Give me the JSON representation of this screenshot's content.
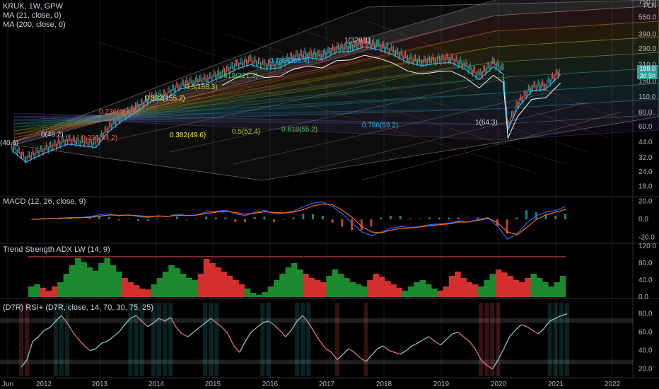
{
  "header": {
    "symbol_line": "KRUK, 1W, GPW",
    "ma1": "MA (21, close, 0)",
    "ma2": "MA (200, close, 0)",
    "currency": "PLN"
  },
  "price_tag": {
    "value": "188.0",
    "countdown": "3d 5h"
  },
  "panes": {
    "macd_title": "MACD (12, 26, close, 9)",
    "adx_title": "Trend Strength ADX LW (14, 9)",
    "rsi_title": "(D7R) RSI+ (D7R, close, 14, 70, 30, 75, 25)"
  },
  "colors": {
    "up": "#26a69a",
    "down": "#ef5350",
    "macd": "#2962ff",
    "signal": "#ff6d00",
    "adx_up": "#1b8a2f",
    "adx_down": "#d32f2f",
    "rsi_up": "#80cbc4",
    "rsi_down": "#e57373"
  },
  "chart_data": [
    {
      "type": "line",
      "title": "KRUK, 1W, GPW",
      "yscale": "log",
      "ylim": [
        15,
        780
      ],
      "x_ticks": [
        "Jun",
        "2012",
        "2013",
        "2014",
        "2015",
        "2016",
        "2017",
        "2018",
        "2019",
        "2020",
        "2021",
        "2022"
      ],
      "y_ticks": [
        18.0,
        24.0,
        32.0,
        44.0,
        60.0,
        80.0,
        110.0,
        150.0,
        210.0,
        290.0,
        390.0,
        550.0,
        750.0
      ],
      "series": [
        {
          "x": [
            "2011-06",
            "2011-09",
            "2012-01",
            "2012-06",
            "2012-12",
            "2013-03",
            "2013-06",
            "2013-09",
            "2013-12",
            "2014-03",
            "2014-06",
            "2014-09",
            "2014-12",
            "2015-03",
            "2015-06",
            "2015-09",
            "2015-12",
            "2016-03",
            "2016-06",
            "2016-09",
            "2016-12",
            "2017-03",
            "2017-06",
            "2017-09",
            "2017-12",
            "2018-03",
            "2018-06",
            "2018-09",
            "2018-12",
            "2019-03",
            "2019-06",
            "2019-09",
            "2019-12",
            "2020-02",
            "2020-03",
            "2020-05",
            "2020-08",
            "2020-11",
            "2021-02"
          ],
          "values": [
            40.6,
            32,
            38,
            46,
            43,
            60,
            75,
            90,
            110,
            115,
            140,
            150,
            160,
            180,
            210,
            230,
            210,
            215,
            250,
            265,
            255,
            295,
            300,
            330,
            310,
            280,
            240,
            225,
            235,
            240,
            210,
            170,
            220,
            190,
            62,
            95,
            135,
            140,
            188
          ]
        }
      ],
      "annotations": [
        "(40.6)",
        "0(48.2)",
        "0.236(114.3)",
        "0.382(155.2)",
        "0.5(188.3)",
        "0.618(221.3)",
        "0.786(268.4)",
        "1(328.1)",
        "1(64.3)",
        "0.236(44.2)",
        "0.382(49.6)",
        "0.5(52.4)",
        "0.618(55.2)",
        "0.786(59.2)"
      ]
    },
    {
      "type": "line",
      "title": "MACD (12, 26, close, 9)",
      "ylim": [
        -25,
        22
      ],
      "y_ticks": [
        20.0,
        0.0,
        -20.0
      ],
      "series": [
        {
          "name": "MACD",
          "values": [
            0,
            0.5,
            1,
            1.5,
            2,
            2,
            3,
            5,
            6,
            4,
            5,
            3,
            2,
            4,
            3,
            6,
            4,
            5,
            8,
            9,
            10,
            6,
            4,
            8,
            10,
            6,
            7,
            9,
            14,
            18,
            19,
            14,
            6,
            -4,
            -14,
            -18,
            -14,
            -10,
            -8,
            -9,
            -8,
            -6,
            -5,
            -4,
            -2,
            -3,
            0,
            2,
            -8,
            -22,
            -16,
            -4,
            4,
            8,
            10,
            14
          ]
        },
        {
          "name": "Signal",
          "values": [
            0,
            0.3,
            0.6,
            1,
            1.4,
            1.8,
            2.2,
            3.5,
            4.8,
            4.5,
            4.6,
            4,
            3,
            3.5,
            3.2,
            4.5,
            4.3,
            4.6,
            6.5,
            8,
            9,
            7.5,
            5.5,
            6.8,
            8.5,
            7.5,
            7,
            8,
            11,
            15,
            17,
            16,
            10,
            2,
            -8,
            -14,
            -15,
            -12,
            -10,
            -9.5,
            -8.5,
            -7,
            -6,
            -5,
            -3,
            -3,
            -1,
            1,
            -4,
            -14,
            -17,
            -9,
            0,
            5,
            8,
            11
          ]
        }
      ]
    },
    {
      "type": "bar",
      "title": "Trend Strength ADX LW (14, 9)",
      "ylim": [
        0,
        120
      ],
      "y_ticks": [
        120.0,
        80.0,
        40.0,
        0.0
      ],
      "reference_line": 95,
      "values": [
        25,
        30,
        22,
        15,
        25,
        35,
        55,
        75,
        92,
        82,
        70,
        62,
        80,
        92,
        75,
        60,
        45,
        35,
        28,
        20,
        18,
        30,
        45,
        60,
        75,
        68,
        55,
        45,
        40,
        55,
        90,
        80,
        70,
        60,
        50,
        40,
        30,
        20,
        10,
        5,
        12,
        25,
        40,
        55,
        70,
        80,
        65,
        55,
        45,
        40,
        35,
        50,
        65,
        55,
        45,
        35,
        30,
        25,
        40,
        55,
        48,
        38,
        30,
        22,
        15,
        25,
        35,
        40,
        30,
        20,
        15,
        25,
        50,
        60,
        45,
        35,
        30,
        25,
        40,
        55,
        65,
        58,
        50,
        40,
        35,
        45,
        55,
        45,
        35,
        25,
        35,
        50
      ],
      "signs": [
        "u",
        "u",
        "d",
        "d",
        "d",
        "u",
        "u",
        "u",
        "u",
        "u",
        "u",
        "u",
        "u",
        "u",
        "u",
        "u",
        "d",
        "d",
        "d",
        "d",
        "d",
        "u",
        "u",
        "u",
        "u",
        "u",
        "u",
        "u",
        "u",
        "d",
        "d",
        "d",
        "d",
        "d",
        "d",
        "d",
        "d",
        "u",
        "u",
        "u",
        "u",
        "u",
        "u",
        "u",
        "u",
        "u",
        "u",
        "d",
        "d",
        "d",
        "d",
        "u",
        "u",
        "u",
        "u",
        "u",
        "u",
        "u",
        "d",
        "d",
        "d",
        "d",
        "d",
        "d",
        "u",
        "u",
        "u",
        "u",
        "u",
        "u",
        "d",
        "d",
        "d",
        "d",
        "d",
        "d",
        "d",
        "u",
        "u",
        "u",
        "d",
        "d",
        "d",
        "d",
        "d",
        "d",
        "u",
        "u",
        "u",
        "u",
        "u",
        "u"
      ]
    },
    {
      "type": "line",
      "title": "(D7R) RSI+ (D7R, close, 14, 70, 30, 75, 25)",
      "ylim": [
        12,
        92
      ],
      "y_ticks": [
        80.0,
        60.0,
        40.0,
        20.0
      ],
      "series": [
        {
          "name": "RSI",
          "values": [
            22,
            30,
            50,
            55,
            62,
            65,
            72,
            78,
            70,
            60,
            52,
            45,
            40,
            42,
            48,
            50,
            55,
            60,
            68,
            75,
            78,
            72,
            66,
            70,
            75,
            72,
            76,
            65,
            58,
            55,
            60,
            65,
            70,
            75,
            70,
            65,
            58,
            45,
            38,
            50,
            60,
            65,
            70,
            72,
            68,
            62,
            55,
            62,
            72,
            78,
            70,
            60,
            50,
            42,
            38,
            30,
            36,
            42,
            38,
            32,
            28,
            35,
            42,
            45,
            40,
            38,
            36,
            40,
            45,
            48,
            52,
            55,
            50,
            46,
            52,
            58,
            60,
            55,
            50,
            42,
            30,
            24,
            20,
            30,
            42,
            55,
            62,
            68,
            66,
            62,
            58,
            64,
            72,
            75,
            78,
            80
          ]
        }
      ]
    }
  ]
}
